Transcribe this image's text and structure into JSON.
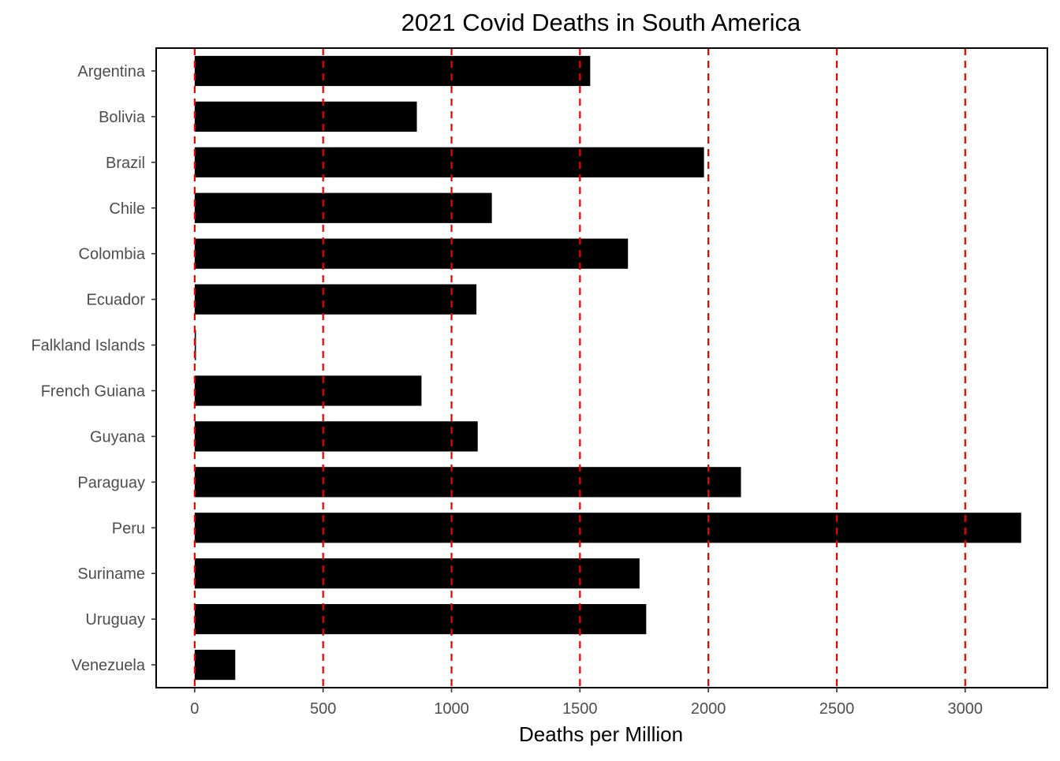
{
  "chart_data": {
    "type": "bar",
    "orientation": "horizontal",
    "title": "2021 Covid Deaths in South America",
    "xlabel": "Deaths per Million",
    "ylabel": "",
    "categories": [
      "Argentina",
      "Bolivia",
      "Brazil",
      "Chile",
      "Colombia",
      "Ecuador",
      "Falkland Islands",
      "French Guiana",
      "Guyana",
      "Paraguay",
      "Peru",
      "Suriname",
      "Uruguay",
      "Venezuela"
    ],
    "values": [
      1540,
      865,
      1983,
      1157,
      1687,
      1097,
      5,
      883,
      1102,
      2127,
      3218,
      1732,
      1758,
      158
    ],
    "xlim": [
      -150,
      3320
    ],
    "xticks": [
      0,
      500,
      1000,
      1500,
      2000,
      2500,
      3000
    ],
    "xtick_labels": [
      "0",
      "500",
      "1000",
      "1500",
      "2000",
      "2500",
      "3000"
    ],
    "reference_lines": [
      0,
      500,
      1000,
      1500,
      2000,
      2500,
      3000
    ],
    "reference_line_style": "dashed",
    "reference_line_color": "#ee0000",
    "bar_color": "#000000",
    "grid": false,
    "legend": "none"
  }
}
